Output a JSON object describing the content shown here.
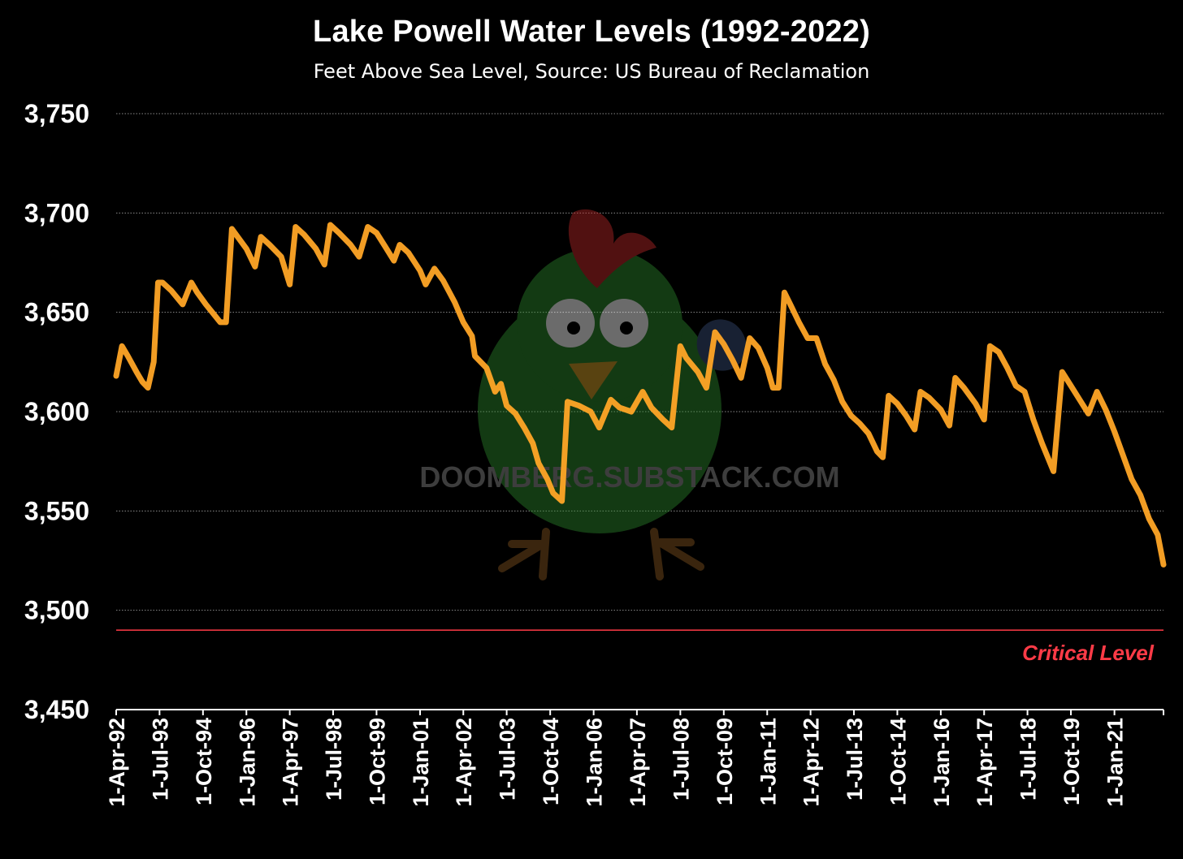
{
  "chart_data": {
    "type": "line",
    "title": "Lake Powell Water Levels (1992-2022)",
    "subtitle": "Feet Above Sea Level, Source: US Bureau of Reclamation",
    "xlabel": "",
    "ylabel": "",
    "ylim": [
      3450,
      3750
    ],
    "y_ticks": [
      3450,
      3500,
      3550,
      3600,
      3650,
      3700,
      3750
    ],
    "y_tick_labels": [
      "3,450",
      "3,500",
      "3,550",
      "3,600",
      "3,650",
      "3,700",
      "3,750"
    ],
    "x_tick_labels": [
      "1-Apr-92",
      "1-Jul-93",
      "1-Oct-94",
      "1-Jan-96",
      "1-Apr-97",
      "1-Jul-98",
      "1-Oct-99",
      "1-Jan-01",
      "1-Apr-02",
      "1-Jul-03",
      "1-Oct-04",
      "1-Jan-06",
      "1-Apr-07",
      "1-Jul-08",
      "1-Oct-09",
      "1-Jan-11",
      "1-Apr-12",
      "1-Jul-13",
      "1-Oct-14",
      "1-Jan-16",
      "1-Apr-17",
      "1-Jul-18",
      "1-Oct-19",
      "1-Jan-21"
    ],
    "grid": true,
    "series": [
      {
        "color": "#FFA526",
        "points": [
          [
            "1992-04-01",
            3618
          ],
          [
            "1992-06-01",
            3633
          ],
          [
            "1992-08-01",
            3628
          ],
          [
            "1992-11-01",
            3620
          ],
          [
            "1993-01-01",
            3615
          ],
          [
            "1993-03-01",
            3612
          ],
          [
            "1993-05-01",
            3625
          ],
          [
            "1993-06-15",
            3665
          ],
          [
            "1993-08-01",
            3665
          ],
          [
            "1993-11-01",
            3661
          ],
          [
            "1994-03-01",
            3654
          ],
          [
            "1994-06-01",
            3665
          ],
          [
            "1994-08-01",
            3660
          ],
          [
            "1994-11-01",
            3654
          ],
          [
            "1995-04-01",
            3645
          ],
          [
            "1995-06-01",
            3645
          ],
          [
            "1995-08-01",
            3692
          ],
          [
            "1995-10-01",
            3688
          ],
          [
            "1996-01-01",
            3682
          ],
          [
            "1996-04-01",
            3673
          ],
          [
            "1996-06-01",
            3688
          ],
          [
            "1996-09-01",
            3684
          ],
          [
            "1997-01-01",
            3678
          ],
          [
            "1997-04-01",
            3664
          ],
          [
            "1997-06-01",
            3693
          ],
          [
            "1997-09-01",
            3689
          ],
          [
            "1998-01-01",
            3682
          ],
          [
            "1998-04-01",
            3674
          ],
          [
            "1998-06-01",
            3694
          ],
          [
            "1998-09-01",
            3690
          ],
          [
            "1999-01-01",
            3684
          ],
          [
            "1999-04-01",
            3678
          ],
          [
            "1999-07-01",
            3693
          ],
          [
            "1999-10-01",
            3690
          ],
          [
            "2000-01-01",
            3683
          ],
          [
            "2000-04-01",
            3676
          ],
          [
            "2000-06-01",
            3684
          ],
          [
            "2000-09-01",
            3680
          ],
          [
            "2001-01-01",
            3671
          ],
          [
            "2001-03-01",
            3664
          ],
          [
            "2001-06-01",
            3672
          ],
          [
            "2001-09-01",
            3666
          ],
          [
            "2002-01-01",
            3655
          ],
          [
            "2002-04-01",
            3645
          ],
          [
            "2002-07-01",
            3638
          ],
          [
            "2002-08-01",
            3628
          ],
          [
            "2002-12-01",
            3622
          ],
          [
            "2003-03-01",
            3610
          ],
          [
            "2003-05-01",
            3614
          ],
          [
            "2003-07-01",
            3603
          ],
          [
            "2003-10-01",
            3599
          ],
          [
            "2004-01-01",
            3592
          ],
          [
            "2004-04-01",
            3584
          ],
          [
            "2004-06-01",
            3574
          ],
          [
            "2004-09-01",
            3566
          ],
          [
            "2004-11-01",
            3559
          ],
          [
            "2005-02-01",
            3555
          ],
          [
            "2005-04-01",
            3605
          ],
          [
            "2005-08-01",
            3603
          ],
          [
            "2005-12-01",
            3600
          ],
          [
            "2006-03-01",
            3592
          ],
          [
            "2006-07-01",
            3606
          ],
          [
            "2006-10-01",
            3602
          ],
          [
            "2007-02-01",
            3600
          ],
          [
            "2007-06-01",
            3610
          ],
          [
            "2007-09-01",
            3602
          ],
          [
            "2008-01-01",
            3596
          ],
          [
            "2008-04-01",
            3592
          ],
          [
            "2008-07-01",
            3633
          ],
          [
            "2008-09-01",
            3627
          ],
          [
            "2009-01-01",
            3620
          ],
          [
            "2009-04-01",
            3612
          ],
          [
            "2009-07-01",
            3640
          ],
          [
            "2009-10-01",
            3634
          ],
          [
            "2010-01-01",
            3626
          ],
          [
            "2010-04-01",
            3617
          ],
          [
            "2010-07-01",
            3637
          ],
          [
            "2010-10-01",
            3632
          ],
          [
            "2011-01-01",
            3622
          ],
          [
            "2011-03-01",
            3612
          ],
          [
            "2011-05-01",
            3612
          ],
          [
            "2011-07-01",
            3660
          ],
          [
            "2011-09-01",
            3654
          ],
          [
            "2011-12-01",
            3645
          ],
          [
            "2012-03-01",
            3637
          ],
          [
            "2012-06-01",
            3637
          ],
          [
            "2012-09-01",
            3624
          ],
          [
            "2012-12-01",
            3616
          ],
          [
            "2013-03-01",
            3605
          ],
          [
            "2013-06-01",
            3598
          ],
          [
            "2013-09-01",
            3594
          ],
          [
            "2013-12-01",
            3589
          ],
          [
            "2014-03-01",
            3580
          ],
          [
            "2014-05-01",
            3577
          ],
          [
            "2014-07-01",
            3608
          ],
          [
            "2014-10-01",
            3604
          ],
          [
            "2015-01-01",
            3598
          ],
          [
            "2015-04-01",
            3591
          ],
          [
            "2015-06-01",
            3610
          ],
          [
            "2015-09-01",
            3607
          ],
          [
            "2016-01-01",
            3601
          ],
          [
            "2016-04-01",
            3593
          ],
          [
            "2016-06-01",
            3617
          ],
          [
            "2016-09-01",
            3612
          ],
          [
            "2017-01-01",
            3604
          ],
          [
            "2017-04-01",
            3596
          ],
          [
            "2017-06-01",
            3633
          ],
          [
            "2017-09-01",
            3630
          ],
          [
            "2017-12-01",
            3622
          ],
          [
            "2018-03-01",
            3613
          ],
          [
            "2018-06-01",
            3610
          ],
          [
            "2018-09-01",
            3596
          ],
          [
            "2018-12-01",
            3584
          ],
          [
            "2019-04-01",
            3570
          ],
          [
            "2019-07-01",
            3620
          ],
          [
            "2019-10-01",
            3613
          ],
          [
            "2020-01-01",
            3606
          ],
          [
            "2020-04-01",
            3599
          ],
          [
            "2020-07-01",
            3610
          ],
          [
            "2020-10-01",
            3601
          ],
          [
            "2021-01-01",
            3590
          ],
          [
            "2021-04-01",
            3578
          ],
          [
            "2021-07-01",
            3566
          ],
          [
            "2021-10-01",
            3558
          ],
          [
            "2022-01-01",
            3546
          ],
          [
            "2022-04-01",
            3538
          ],
          [
            "2022-06-01",
            3523
          ]
        ]
      }
    ],
    "reference_line": {
      "value": 3490,
      "label": "Critical Level",
      "color": "#FF3B47"
    },
    "watermark": "DOOMBERG.SUBSTACK.COM"
  }
}
